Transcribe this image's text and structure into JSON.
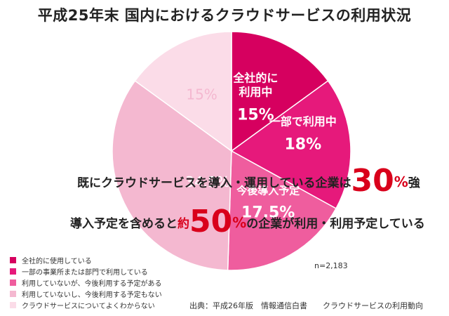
{
  "title": "平成25年末 国内におけるクラウドサービスの利用状況",
  "chart_data": {
    "type": "pie",
    "slices": [
      {
        "label": "全社的に利用中",
        "value": 15,
        "value_label": "15%",
        "color": "#d6005f"
      },
      {
        "label": "一部で利用中",
        "value": 18,
        "value_label": "18%",
        "color": "#e6197b"
      },
      {
        "label": "今後導入予定",
        "value": 17.5,
        "value_label": "17.5%",
        "color": "#ef5d9e"
      },
      {
        "label": "",
        "value": 34.5,
        "value_label": "34.5%",
        "color": "#f4b8d0"
      },
      {
        "label": "",
        "value": 15,
        "value_label": "15%",
        "color": "#fbdce8"
      }
    ],
    "legend": [
      {
        "label": "全社的に使用している",
        "color": "#d6005f"
      },
      {
        "label": "一部の事業所または部門で利用している",
        "color": "#e6197b"
      },
      {
        "label": "利用していないが、今後利用する予定がある",
        "color": "#ef5d9e"
      },
      {
        "label": "利用していないし、今後利用する予定もない",
        "color": "#f4b8d0"
      },
      {
        "label": "クラウドサービスについてよくわからない",
        "color": "#fbdce8"
      }
    ],
    "legend_position": "bottom-left"
  },
  "overlay": {
    "line1_text": "既にクラウドサービスを導入・運用している企業は",
    "line1_num": "30",
    "line1_pct": "%",
    "line1_suffix": "強",
    "line2_text": "導入予定を含めると",
    "line2_approx": "約",
    "line2_num": "50",
    "line2_pct": "%",
    "line2_suffix": "の企業が利用・利用予定している"
  },
  "sample_size": "n=2,183",
  "source": "出典：平成26年版　情報通信白書　　クラウドサービスの利用動向"
}
